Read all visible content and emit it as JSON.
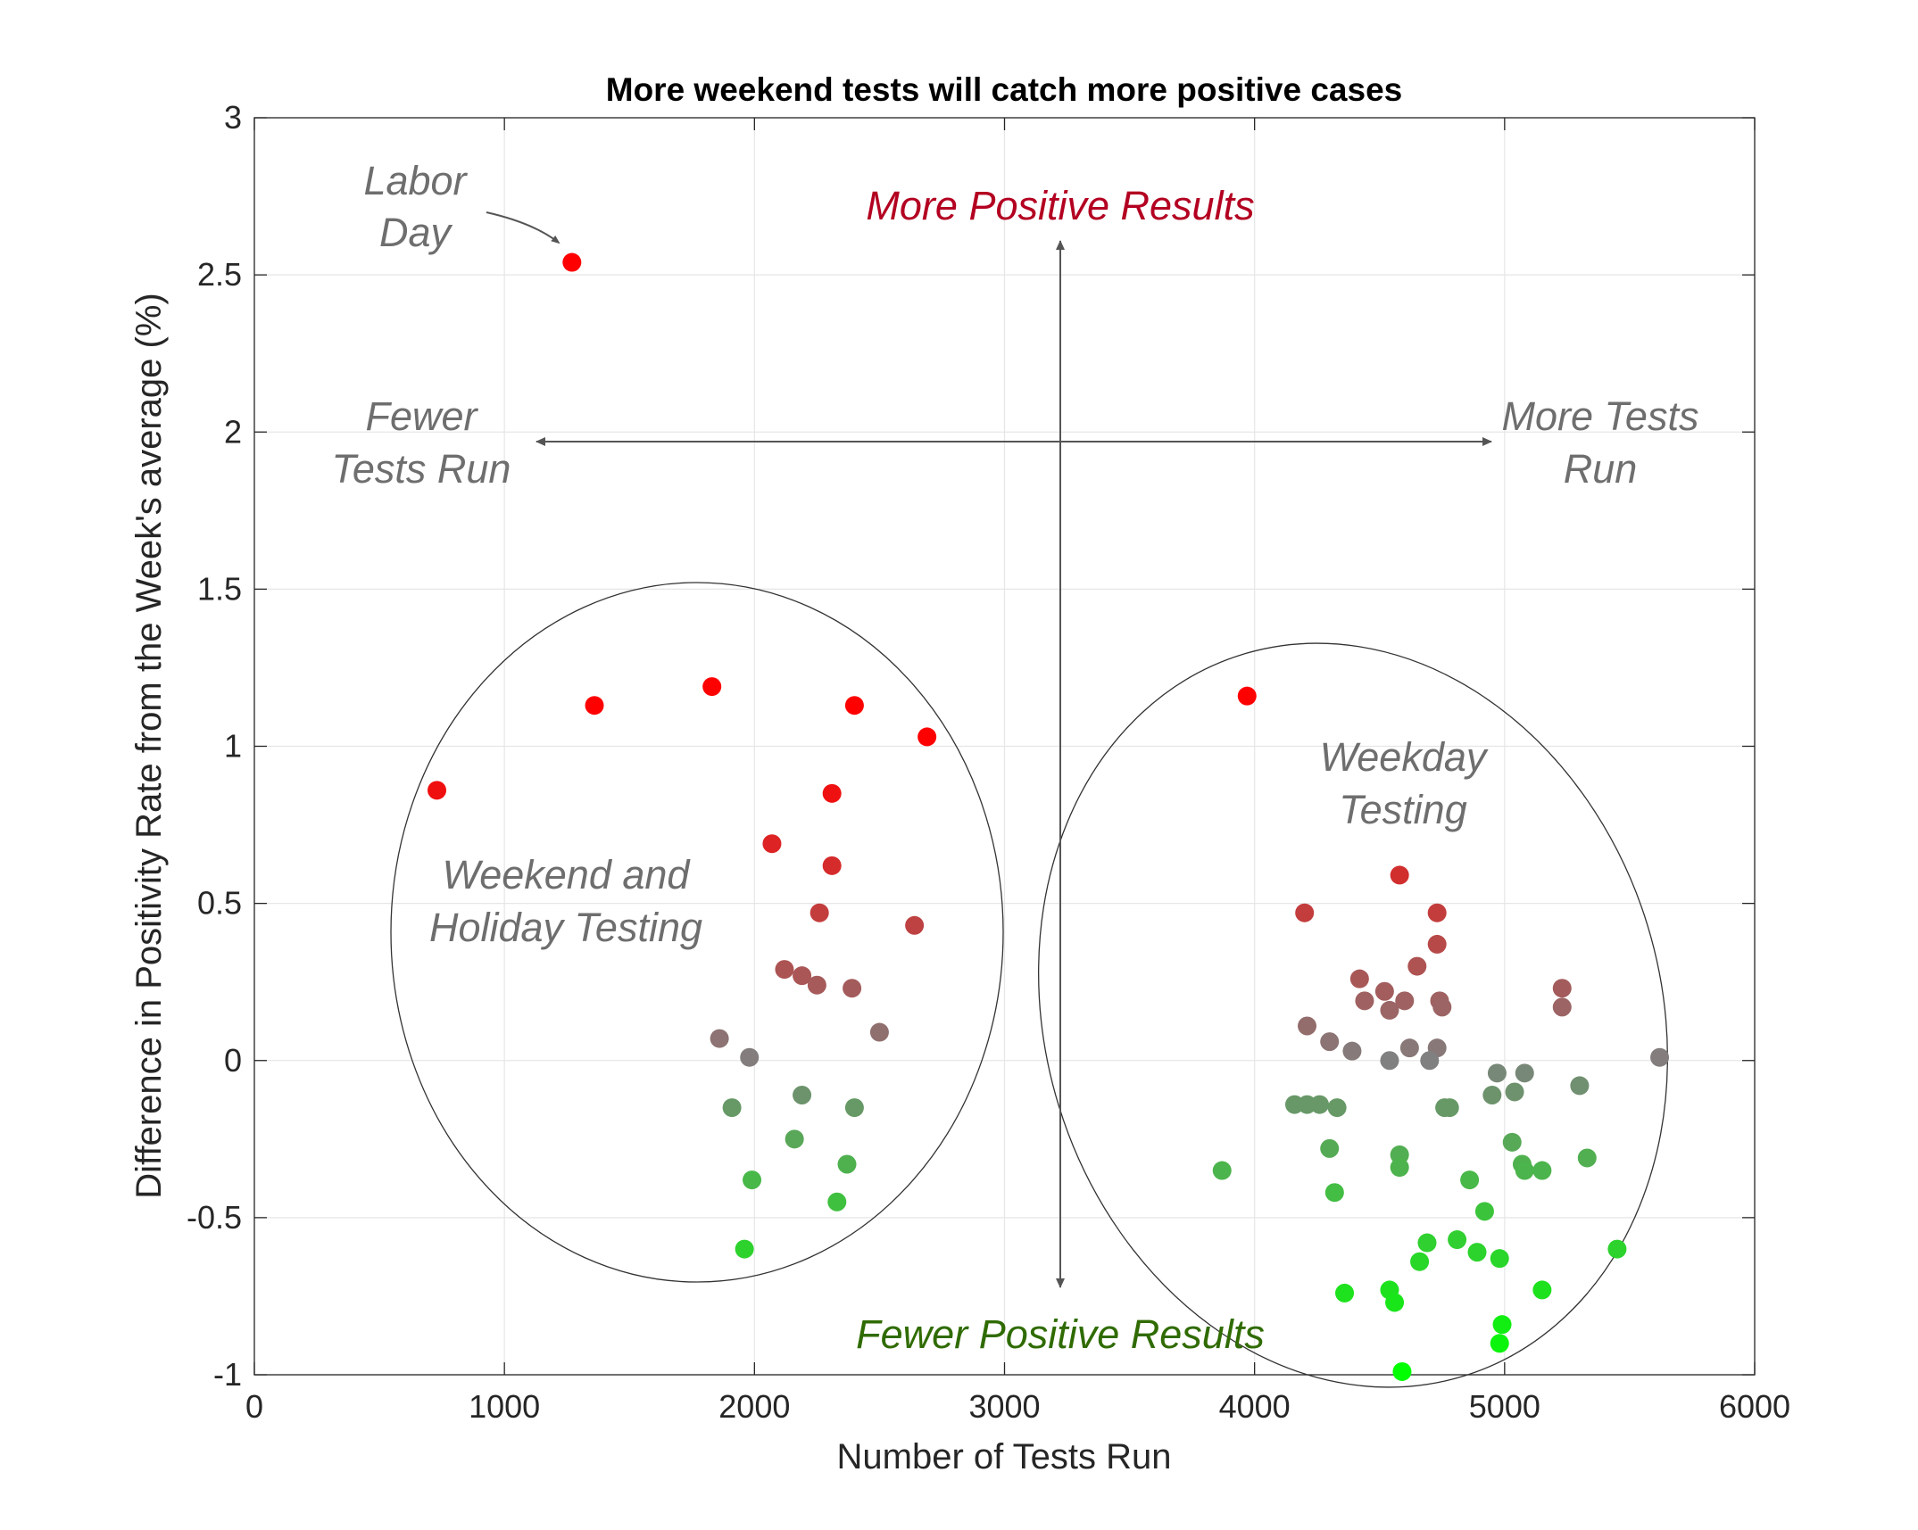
{
  "chart_data": {
    "type": "scatter",
    "title": "More weekend tests will catch more positive cases",
    "xlabel": "Number of Tests Run",
    "ylabel": "Difference in Positivity Rate from the Week's average (%)",
    "xlim": [
      0,
      6000
    ],
    "ylim": [
      -1,
      3
    ],
    "x_ticks": [
      "0",
      "1000",
      "2000",
      "3000",
      "4000",
      "5000",
      "6000"
    ],
    "y_ticks": [
      "-1",
      "-0.5",
      "0",
      "0.5",
      "1",
      "1.5",
      "2",
      "2.5",
      "3"
    ],
    "grid": true,
    "color_scale": {
      "positive": "#ff0000",
      "neutral": "#808080",
      "negative": "#00ff00"
    },
    "points": [
      {
        "x": 1270,
        "y": 2.54
      },
      {
        "x": 730,
        "y": 0.86
      },
      {
        "x": 1360,
        "y": 1.13
      },
      {
        "x": 1830,
        "y": 1.19
      },
      {
        "x": 2400,
        "y": 1.13
      },
      {
        "x": 2690,
        "y": 1.03
      },
      {
        "x": 2310,
        "y": 0.85
      },
      {
        "x": 2070,
        "y": 0.69
      },
      {
        "x": 2310,
        "y": 0.62
      },
      {
        "x": 2260,
        "y": 0.47
      },
      {
        "x": 2640,
        "y": 0.43
      },
      {
        "x": 2120,
        "y": 0.29
      },
      {
        "x": 2190,
        "y": 0.27
      },
      {
        "x": 2250,
        "y": 0.24
      },
      {
        "x": 2390,
        "y": 0.23
      },
      {
        "x": 2500,
        "y": 0.09
      },
      {
        "x": 1860,
        "y": 0.07
      },
      {
        "x": 1980,
        "y": 0.01
      },
      {
        "x": 2190,
        "y": -0.11
      },
      {
        "x": 1910,
        "y": -0.15
      },
      {
        "x": 2400,
        "y": -0.15
      },
      {
        "x": 2160,
        "y": -0.25
      },
      {
        "x": 2370,
        "y": -0.33
      },
      {
        "x": 1990,
        "y": -0.38
      },
      {
        "x": 2330,
        "y": -0.45
      },
      {
        "x": 1960,
        "y": -0.6
      },
      {
        "x": 3970,
        "y": 1.16
      },
      {
        "x": 4580,
        "y": 0.59
      },
      {
        "x": 4200,
        "y": 0.47
      },
      {
        "x": 4730,
        "y": 0.47
      },
      {
        "x": 4730,
        "y": 0.37
      },
      {
        "x": 4650,
        "y": 0.3
      },
      {
        "x": 4420,
        "y": 0.26
      },
      {
        "x": 4520,
        "y": 0.22
      },
      {
        "x": 4440,
        "y": 0.19
      },
      {
        "x": 4600,
        "y": 0.19
      },
      {
        "x": 4740,
        "y": 0.19
      },
      {
        "x": 4540,
        "y": 0.16
      },
      {
        "x": 4750,
        "y": 0.17
      },
      {
        "x": 5230,
        "y": 0.23
      },
      {
        "x": 5230,
        "y": 0.17
      },
      {
        "x": 4210,
        "y": 0.11
      },
      {
        "x": 4300,
        "y": 0.06
      },
      {
        "x": 4390,
        "y": 0.03
      },
      {
        "x": 4620,
        "y": 0.04
      },
      {
        "x": 4730,
        "y": 0.04
      },
      {
        "x": 4540,
        "y": 0.0
      },
      {
        "x": 4700,
        "y": 0.0
      },
      {
        "x": 5620,
        "y": 0.01
      },
      {
        "x": 4970,
        "y": -0.04
      },
      {
        "x": 5080,
        "y": -0.04
      },
      {
        "x": 5300,
        "y": -0.08
      },
      {
        "x": 5040,
        "y": -0.1
      },
      {
        "x": 4950,
        "y": -0.11
      },
      {
        "x": 4160,
        "y": -0.14
      },
      {
        "x": 4210,
        "y": -0.14
      },
      {
        "x": 4260,
        "y": -0.14
      },
      {
        "x": 4330,
        "y": -0.15
      },
      {
        "x": 4760,
        "y": -0.15
      },
      {
        "x": 4780,
        "y": -0.15
      },
      {
        "x": 5030,
        "y": -0.26
      },
      {
        "x": 4300,
        "y": -0.28
      },
      {
        "x": 4580,
        "y": -0.3
      },
      {
        "x": 5330,
        "y": -0.31
      },
      {
        "x": 5070,
        "y": -0.33
      },
      {
        "x": 4580,
        "y": -0.34
      },
      {
        "x": 5080,
        "y": -0.35
      },
      {
        "x": 5150,
        "y": -0.35
      },
      {
        "x": 3870,
        "y": -0.35
      },
      {
        "x": 4860,
        "y": -0.38
      },
      {
        "x": 4320,
        "y": -0.42
      },
      {
        "x": 4920,
        "y": -0.48
      },
      {
        "x": 4810,
        "y": -0.57
      },
      {
        "x": 4690,
        "y": -0.58
      },
      {
        "x": 5450,
        "y": -0.6
      },
      {
        "x": 4890,
        "y": -0.61
      },
      {
        "x": 4980,
        "y": -0.63
      },
      {
        "x": 4660,
        "y": -0.64
      },
      {
        "x": 5150,
        "y": -0.73
      },
      {
        "x": 4540,
        "y": -0.73
      },
      {
        "x": 4360,
        "y": -0.74
      },
      {
        "x": 4560,
        "y": -0.77
      },
      {
        "x": 4990,
        "y": -0.84
      },
      {
        "x": 4980,
        "y": -0.9
      },
      {
        "x": 4590,
        "y": -0.99
      }
    ]
  },
  "annotations": {
    "labor_day": [
      "Labor",
      "Day"
    ],
    "more_positive": "More Positive Results",
    "fewer_positive": "Fewer Positive Results",
    "fewer_tests": [
      "Fewer",
      "Tests Run"
    ],
    "more_tests": [
      "More Tests",
      "Run"
    ],
    "weekend": [
      "Weekend and",
      "Holiday Testing"
    ],
    "weekday": [
      "Weekday",
      "Testing"
    ]
  },
  "colors": {
    "gray_text": "#6e6e6e",
    "red_text": "#b30021",
    "green_text": "#2f6b00",
    "arrow": "#555555"
  }
}
